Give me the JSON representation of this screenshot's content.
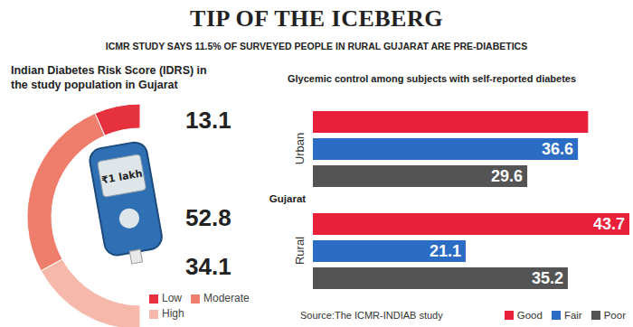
{
  "title": "TIP OF THE ICEBERG",
  "subtitle": "ICMR STUDY SAYS 11.5% OF SURVEYED PEOPLE IN RURAL GUJARAT ARE PRE-DIABETICS",
  "chart_data": [
    {
      "type": "pie",
      "title": "Indian Diabetes Risk Score (IDRS) in the study population in Gujarat",
      "categories": [
        "Low",
        "Moderate",
        "High"
      ],
      "values": [
        13.1,
        52.8,
        34.1
      ],
      "colors": [
        "#e5323e",
        "#ef7d6c",
        "#f5b8ab"
      ],
      "data_labels": true,
      "legend": "lower right",
      "annotations": [
        "₹1 lakh"
      ]
    },
    {
      "type": "bar",
      "orientation": "horizontal",
      "title": "Glycemic control among subjects with self-reported diabetes",
      "ylabel": "Gujarat",
      "categories": [
        "Urban",
        "Rural"
      ],
      "series": [
        {
          "name": "Good",
          "color": "#e8203a",
          "values": [
            38,
            43.7
          ],
          "value_labels": [
            null,
            "43.7"
          ]
        },
        {
          "name": "Fair",
          "color": "#2b6cc4",
          "values": [
            36.6,
            21.1
          ]
        },
        {
          "name": "Poor",
          "color": "#545454",
          "values": [
            29.6,
            35.2
          ]
        }
      ],
      "data_labels": true,
      "tick_labels": "y",
      "legend": "lower right",
      "source": "Source:The ICMR-INDIAB study"
    }
  ]
}
